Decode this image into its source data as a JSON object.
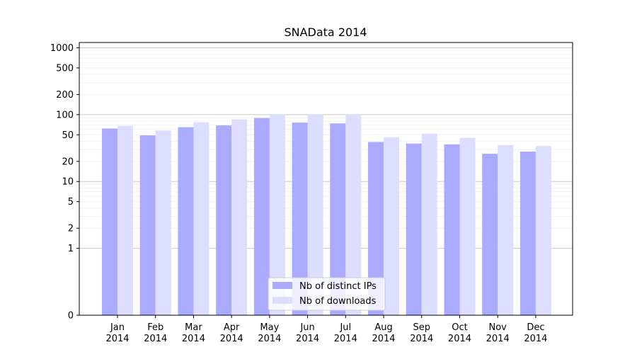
{
  "chart_data": {
    "type": "bar",
    "title": "SNAData 2014",
    "xlabel": "",
    "ylabel": "",
    "yscale": "symlog",
    "ylim": [
      0,
      1200
    ],
    "y_ticks": [
      0,
      1,
      2,
      5,
      10,
      20,
      50,
      100,
      200,
      500,
      1000
    ],
    "grid": true,
    "legend_position": "lower center",
    "categories": [
      {
        "month": "Jan",
        "year": "2014"
      },
      {
        "month": "Feb",
        "year": "2014"
      },
      {
        "month": "Mar",
        "year": "2014"
      },
      {
        "month": "Apr",
        "year": "2014"
      },
      {
        "month": "May",
        "year": "2014"
      },
      {
        "month": "Jun",
        "year": "2014"
      },
      {
        "month": "Jul",
        "year": "2014"
      },
      {
        "month": "Aug",
        "year": "2014"
      },
      {
        "month": "Sep",
        "year": "2014"
      },
      {
        "month": "Oct",
        "year": "2014"
      },
      {
        "month": "Nov",
        "year": "2014"
      },
      {
        "month": "Dec",
        "year": "2014"
      }
    ],
    "series": [
      {
        "name": "Nb of distinct IPs",
        "color": "#aaaaff",
        "values": [
          62,
          49,
          65,
          69,
          89,
          76,
          74,
          39,
          37,
          36,
          26,
          28
        ]
      },
      {
        "name": "Nb of downloads",
        "color": "#ddddff",
        "values": [
          68,
          58,
          77,
          85,
          102,
          101,
          100,
          46,
          52,
          45,
          35,
          34
        ]
      }
    ]
  }
}
